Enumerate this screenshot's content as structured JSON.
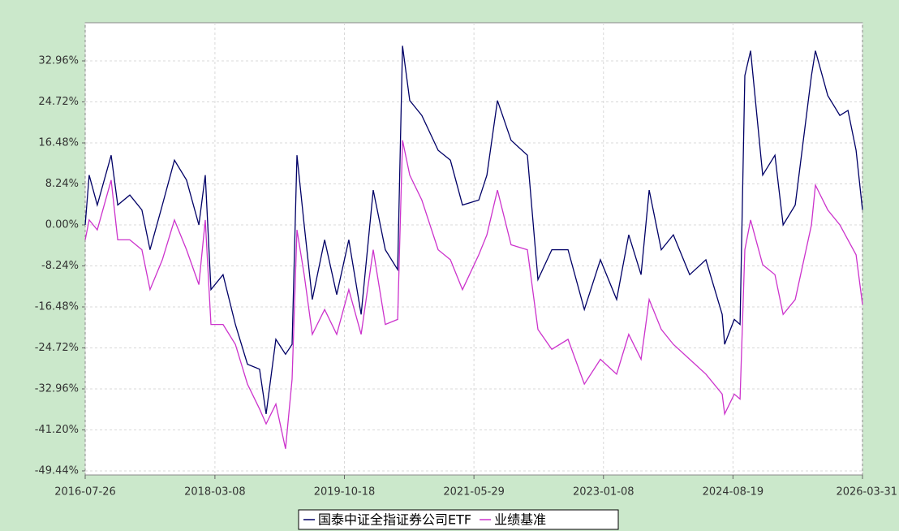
{
  "chart_data": {
    "type": "line",
    "x": [
      "2016-07-26",
      "2016-08-13",
      "2016-09-19",
      "2016-11-21",
      "2016-12-21",
      "2017-02-14",
      "2017-04-10",
      "2017-05-17",
      "2017-07-12",
      "2017-09-05",
      "2017-10-30",
      "2017-12-25",
      "2018-01-23",
      "2018-02-18",
      "2018-04-14",
      "2018-06-09",
      "2018-08-03",
      "2018-09-27",
      "2018-10-27",
      "2018-12-10",
      "2019-01-23",
      "2019-02-22",
      "2019-03-16",
      "2019-04-18",
      "2019-05-25",
      "2019-07-20",
      "2019-09-13",
      "2019-11-07",
      "2020-01-02",
      "2020-02-26",
      "2020-04-21",
      "2020-06-16",
      "2020-07-08",
      "2020-08-10",
      "2020-10-04",
      "2020-12-17",
      "2021-02-11",
      "2021-04-07",
      "2021-06-20",
      "2021-07-27",
      "2021-09-13",
      "2021-11-14",
      "2022-01-27",
      "2022-03-16",
      "2022-05-18",
      "2022-07-31",
      "2022-10-13",
      "2022-12-25",
      "2023-03-09",
      "2023-05-03",
      "2023-06-28",
      "2023-08-04",
      "2023-09-28",
      "2023-11-22",
      "2024-02-04",
      "2024-04-18",
      "2024-07-01",
      "2024-07-12",
      "2024-08-25",
      "2024-09-20",
      "2024-10-12",
      "2024-11-07",
      "2025-01-01",
      "2025-02-26",
      "2025-04-04",
      "2025-05-29",
      "2025-08-11",
      "2025-08-29",
      "2025-10-24",
      "2025-12-18",
      "2026-01-24",
      "2026-03-02",
      "2026-03-31"
    ],
    "series": [
      {
        "name": "国泰中证全指证券公司ETF",
        "color": "#000066",
        "values": [
          0,
          10,
          4,
          14,
          4,
          6,
          3,
          -5,
          4,
          13,
          9,
          0,
          10,
          -13,
          -10,
          -20,
          -28,
          -29,
          -38,
          -23,
          -26,
          -24,
          14,
          0,
          -15,
          -3,
          -14,
          -3,
          -18,
          7,
          -5,
          -9,
          36,
          25,
          22,
          15,
          13,
          4,
          5,
          10,
          25,
          17,
          14,
          -11,
          -5,
          -5,
          -17,
          -7,
          -15,
          -2,
          -10,
          7,
          -5,
          -2,
          -10,
          -7,
          -18,
          -24,
          -19,
          -20,
          30,
          35,
          10,
          14,
          0,
          4,
          30,
          35,
          26,
          22,
          23,
          15,
          3
        ]
      },
      {
        "name": "业绩基准",
        "color": "#cc33cc",
        "values": [
          -3,
          1,
          -1,
          9,
          -3,
          -3,
          -5,
          -13,
          -7,
          1,
          -5,
          -12,
          1,
          -20,
          -20,
          -24,
          -32,
          -37,
          -40,
          -36,
          -45,
          -31,
          -1,
          -10,
          -22,
          -17,
          -22,
          -13,
          -22,
          -5,
          -20,
          -19,
          17,
          10,
          5,
          -5,
          -7,
          -13,
          -6,
          -2,
          7,
          -4,
          -5,
          -21,
          -25,
          -23,
          -32,
          -27,
          -30,
          -22,
          -27,
          -15,
          -21,
          -24,
          -27,
          -30,
          -34,
          -38,
          -34,
          -35,
          -5,
          1,
          -8,
          -10,
          -18,
          -15,
          0,
          8,
          3,
          0,
          -3,
          -6,
          -16
        ]
      }
    ],
    "xlim": [
      "2016-07-26",
      "2026-03-31"
    ],
    "xticks": [
      "2016-07-26",
      "2018-03-08",
      "2019-10-18",
      "2021-05-29",
      "2023-01-08",
      "2024-08-19",
      "2026-03-31"
    ],
    "ylim": [
      -50.26,
      40.63
    ],
    "yticks": [
      {
        "value": -49.44,
        "label": "-49.44%"
      },
      {
        "value": -41.2,
        "label": "-41.20%"
      },
      {
        "value": -32.96,
        "label": "-32.96%"
      },
      {
        "value": -24.72,
        "label": "-24.72%"
      },
      {
        "value": -16.48,
        "label": "-16.48%"
      },
      {
        "value": -8.24,
        "label": "-8.24%"
      },
      {
        "value": 0,
        "label": "0.00%"
      },
      {
        "value": 8.24,
        "label": "8.24%"
      },
      {
        "value": 16.48,
        "label": "16.48%"
      },
      {
        "value": 24.72,
        "label": "24.72%"
      },
      {
        "value": 32.96,
        "label": "32.96%"
      }
    ],
    "grid": true
  }
}
